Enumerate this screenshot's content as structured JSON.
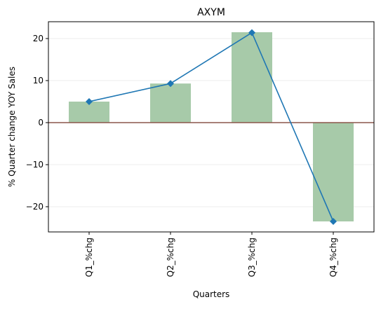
{
  "chart_data": {
    "type": "bar",
    "title": "AXYM",
    "xlabel": "Quarters",
    "ylabel": "% Quarter change YOY Sales",
    "categories": [
      "Q1_%chg",
      "Q2_%chg",
      "Q3_%chg",
      "Q4_%chg"
    ],
    "series": [
      {
        "type": "bar",
        "values": [
          5.0,
          9.3,
          21.5,
          -23.5
        ],
        "color": "#a7caa9"
      },
      {
        "type": "line",
        "marker": "diamond",
        "values": [
          5.0,
          9.3,
          21.4,
          -23.5
        ],
        "color": "#1f77b4"
      }
    ],
    "ylim": [
      -26,
      24
    ],
    "yticks": [
      -20,
      -10,
      0,
      10,
      20
    ],
    "ytick_labels": [
      "−20",
      "−10",
      "0",
      "10",
      "20"
    ],
    "zero_line_color": "#8c564b",
    "grid": "horizontal, light"
  }
}
